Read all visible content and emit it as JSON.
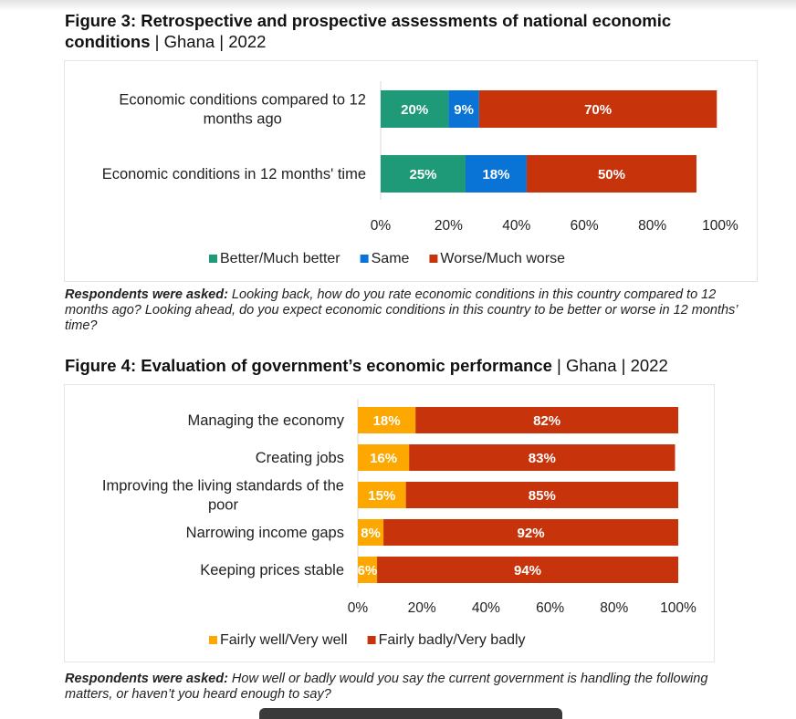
{
  "figure3": {
    "title_bold": "Figure 3:  Retrospective and prospective assessments of national economic conditions",
    "title_suffix": " | Ghana | 2022",
    "note_bold": "Respondents were asked:",
    "note_text": " Looking back, how do you rate economic conditions in this country compared to 12 months ago? Looking ahead, do you expect economic conditions in this country to be better or worse in 12 months’ time?"
  },
  "figure4": {
    "title_bold": "Figure 4: Evaluation of government’s economic performance",
    "title_suffix": " | Ghana | 2022",
    "note_bold": "Respondents were asked:",
    "note_text": " How well or badly would you say the current government is handling the following matters, or haven’t you heard enough to say?"
  },
  "chart_data": [
    {
      "type": "bar",
      "orientation": "horizontal",
      "stacked": true,
      "title": "Figure 3: Retrospective and prospective assessments of national economic conditions | Ghana | 2022",
      "categories": [
        [
          "Economic conditions compared to 12",
          "months ago"
        ],
        [
          "Economic conditions in 12 months' time"
        ]
      ],
      "series": [
        {
          "name": "Better/Much better",
          "color": "#1e9a78",
          "values": [
            20,
            25
          ]
        },
        {
          "name": "Same",
          "color": "#0a74d6",
          "values": [
            9,
            18
          ]
        },
        {
          "name": "Worse/Much worse",
          "color": "#c7340c",
          "values": [
            70,
            50
          ]
        }
      ],
      "xlim": [
        0,
        100
      ],
      "xticks": [
        "0%",
        "20%",
        "40%",
        "60%",
        "80%",
        "100%"
      ],
      "xlabel": "",
      "ylabel": "",
      "grid": false,
      "legend": "bottom"
    },
    {
      "type": "bar",
      "orientation": "horizontal",
      "stacked": true,
      "title": "Figure 4: Evaluation of government's economic performance | Ghana | 2022",
      "categories": [
        [
          "Managing the economy"
        ],
        [
          "Creating jobs"
        ],
        [
          "Improving the living standards of the",
          "poor"
        ],
        [
          "Narrowing income gaps"
        ],
        [
          "Keeping prices stable"
        ]
      ],
      "series": [
        {
          "name": "Fairly well/Very well",
          "color": "#fca800",
          "values": [
            18,
            16,
            15,
            8,
            6
          ]
        },
        {
          "name": "Fairly badly/Very badly",
          "color": "#c7340c",
          "values": [
            82,
            83,
            85,
            92,
            94
          ]
        }
      ],
      "xlim": [
        0,
        100
      ],
      "xticks": [
        "0%",
        "20%",
        "40%",
        "60%",
        "80%",
        "100%"
      ],
      "xlabel": "",
      "ylabel": "",
      "grid": false,
      "legend": "bottom"
    }
  ]
}
